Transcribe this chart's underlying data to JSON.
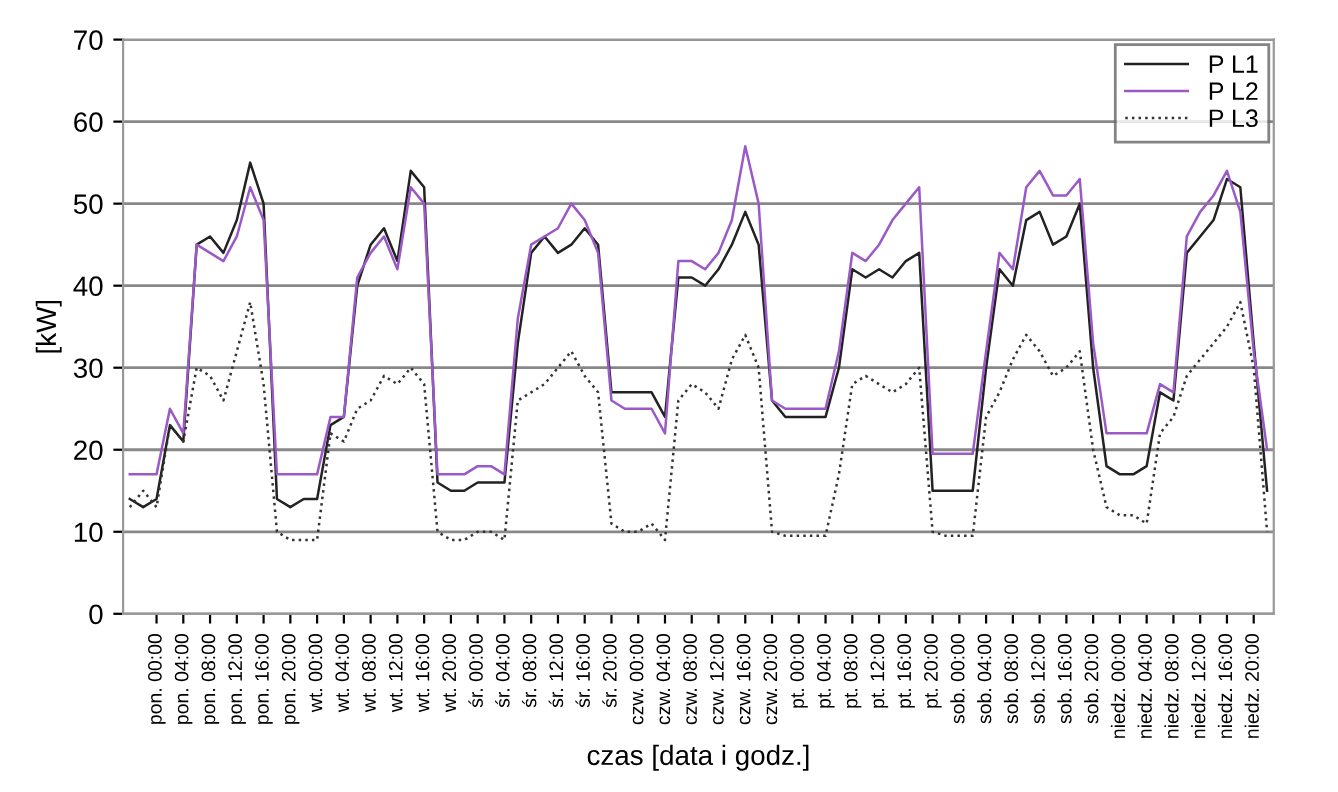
{
  "chart_data": {
    "type": "line",
    "xlabel": "czas [data i godz.]",
    "ylabel": "[kW]",
    "ylim": [
      0,
      70
    ],
    "yticks": [
      0,
      10,
      20,
      30,
      40,
      50,
      60,
      70
    ],
    "categories": [
      null,
      null,
      "pon. 00:00",
      null,
      "pon. 04:00",
      null,
      "pon. 08:00",
      null,
      "pon. 12:00",
      null,
      "pon. 16:00",
      null,
      "pon. 20:00",
      null,
      "wt. 00:00",
      null,
      "wt. 04:00",
      null,
      "wt. 08:00",
      null,
      "wt. 12:00",
      null,
      "wt. 16:00",
      null,
      "wt. 20:00",
      null,
      "śr. 00:00",
      null,
      "śr. 04:00",
      null,
      "śr. 08:00",
      null,
      "śr. 12:00",
      null,
      "śr. 16:00",
      null,
      "śr. 20:00",
      null,
      "czw. 00:00",
      null,
      "czw. 04:00",
      null,
      "czw. 08:00",
      null,
      "czw. 12:00",
      null,
      "czw. 16:00",
      null,
      "czw. 20:00",
      null,
      "pt. 00:00",
      null,
      "pt. 04:00",
      null,
      "pt. 08:00",
      null,
      "pt. 12:00",
      null,
      "pt. 16:00",
      null,
      "pt. 20:00",
      null,
      "sob. 00:00",
      null,
      "sob. 04:00",
      null,
      "sob. 08:00",
      null,
      "sob. 12:00",
      null,
      "sob. 16:00",
      null,
      "sob. 20:00",
      null,
      "niedz. 00:00",
      null,
      "niedz. 04:00",
      null,
      "niedz. 08:00",
      null,
      "niedz. 12:00",
      null,
      "niedz. 16:00",
      null,
      "niedz. 20:00",
      null
    ],
    "grid": "y",
    "legend": "top right",
    "series": [
      {
        "name": "P L1",
        "color": "#222222",
        "line_style": "solid",
        "values": [
          14,
          13,
          14,
          23,
          21,
          45,
          46,
          44,
          48,
          55,
          50,
          14,
          13,
          14,
          14,
          23,
          24,
          40,
          45,
          47,
          43,
          54,
          52,
          16,
          15,
          15,
          16,
          16,
          16,
          33,
          44,
          46,
          44,
          45,
          47,
          45,
          27,
          27,
          27,
          27,
          24,
          41,
          41,
          40,
          42,
          45,
          49,
          45,
          26,
          24,
          24,
          24,
          24,
          30,
          42,
          41,
          42,
          41,
          43,
          44,
          15,
          15,
          15,
          15,
          30,
          42,
          40,
          48,
          49,
          45,
          46,
          50,
          30,
          18,
          17,
          17,
          18,
          27,
          26,
          44,
          46,
          48,
          53,
          52,
          33,
          15
        ]
      },
      {
        "name": "P L2",
        "color": "#9b59c8",
        "line_style": "solid",
        "values": [
          17,
          17,
          17,
          25,
          22,
          45,
          44,
          43,
          46,
          52,
          48,
          17,
          17,
          17,
          17,
          24,
          24,
          41,
          44,
          46,
          42,
          52,
          50,
          17,
          17,
          17,
          18,
          18,
          17,
          36,
          45,
          46,
          47,
          50,
          48,
          44,
          26,
          25,
          25,
          25,
          22,
          43,
          43,
          42,
          44,
          48,
          57,
          50,
          26,
          25,
          25,
          25,
          25,
          32,
          44,
          43,
          45,
          48,
          50,
          52,
          19.5,
          19.5,
          19.5,
          19.5,
          32,
          44,
          42,
          52,
          54,
          51,
          51,
          53,
          33,
          22,
          22,
          22,
          22,
          28,
          27,
          46,
          49,
          51,
          54,
          49,
          32,
          20
        ]
      },
      {
        "name": "P L3",
        "color": "#333333",
        "line_style": "dotted",
        "values": [
          13,
          15,
          13,
          23,
          21,
          30,
          29,
          26,
          32,
          38,
          28,
          10,
          9,
          9,
          9,
          22,
          21,
          25,
          26,
          29,
          28,
          30,
          28,
          10,
          9,
          9,
          10,
          10,
          9,
          26,
          27,
          28,
          30,
          32,
          29,
          27,
          11,
          10,
          10,
          11,
          9,
          26,
          28,
          27,
          25,
          31,
          34,
          30,
          10,
          9.5,
          9.5,
          9.5,
          9.5,
          17,
          28,
          29,
          28,
          27,
          28,
          30,
          10,
          9.5,
          9.5,
          9.5,
          24,
          27,
          31,
          34,
          32,
          29,
          30,
          32,
          20,
          13,
          12,
          12,
          11,
          22,
          24,
          29,
          31,
          33,
          35,
          38,
          30,
          10
        ]
      }
    ]
  }
}
